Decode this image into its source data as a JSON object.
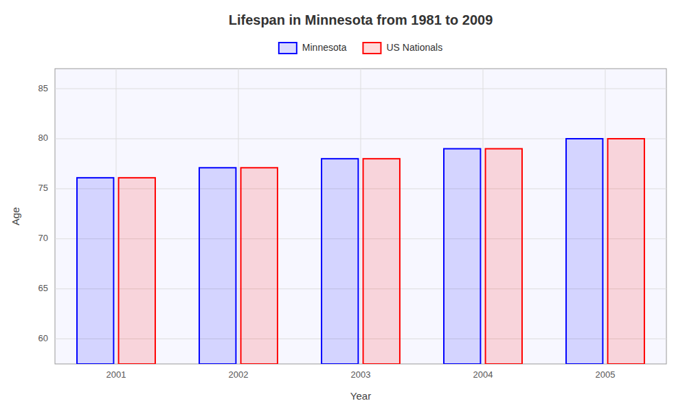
{
  "chart_data": {
    "type": "bar",
    "title": "Lifespan in Minnesota from 1981 to 2009",
    "xlabel": "Year",
    "ylabel": "Age",
    "categories": [
      "2001",
      "2002",
      "2003",
      "2004",
      "2005"
    ],
    "series": [
      {
        "name": "Minnesota",
        "color": "#0000ff",
        "values": [
          76.1,
          77.1,
          78.0,
          79.0,
          80.0
        ]
      },
      {
        "name": "US Nationals",
        "color": "#ff0000",
        "values": [
          76.1,
          77.1,
          78.0,
          79.0,
          80.0
        ]
      }
    ],
    "ylim": [
      57.5,
      87
    ],
    "yticks": [
      60,
      65,
      70,
      75,
      80,
      85
    ],
    "grid": true,
    "legend": "top"
  }
}
